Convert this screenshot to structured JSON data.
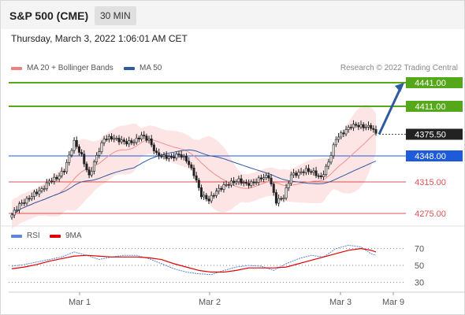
{
  "header": {
    "title": "S&P 500 (CME)",
    "timeframe": "30 MIN",
    "datetime": "Thursday, March 3, 2022 1:06:01 AM CET"
  },
  "main_legend": [
    {
      "label": "MA 20 + Bollinger Bands",
      "color": "#f08080"
    },
    {
      "label": "MA 50",
      "color": "#2f5aa0"
    }
  ],
  "rsi_legend": [
    {
      "label": "RSI",
      "color": "#5b87d6"
    },
    {
      "label": "9MA",
      "color": "#e00000"
    }
  ],
  "copyright": "Research © 2022 Trading Central",
  "colors": {
    "up_candle": "#e8e8e8",
    "down_candle": "#222222",
    "resistance": "#55a81a",
    "pivot": "#1e5bd8",
    "support": "#e05050",
    "forecast_arrow": "#2f5aa0",
    "bollinger": "#fcdcdc"
  },
  "chart_data": [
    {
      "type": "candlestick",
      "title": "S&P 500 (CME)",
      "interval": "30 MIN",
      "ylim": [
        4265,
        4450
      ],
      "x_labels": [
        "Mar 1",
        "Mar 2",
        "Mar 3",
        "Mar 9"
      ],
      "levels": [
        {
          "value": 4441.0,
          "label": "4441.00",
          "kind": "resistance",
          "boxed": true
        },
        {
          "value": 4411.0,
          "label": "4411.00",
          "kind": "resistance",
          "boxed": true
        },
        {
          "value": 4375.5,
          "label": "4375.50",
          "kind": "last",
          "boxed": true
        },
        {
          "value": 4348.0,
          "label": "4348.00",
          "kind": "pivot",
          "boxed": true
        },
        {
          "value": 4315.0,
          "label": "4315.00",
          "kind": "support",
          "boxed": false
        },
        {
          "value": 4275.0,
          "label": "4275.00",
          "kind": "support",
          "boxed": false
        }
      ],
      "anchor_closes": [
        [
          0,
          4273
        ],
        [
          3,
          4286
        ],
        [
          6,
          4292
        ],
        [
          9,
          4300
        ],
        [
          12,
          4305
        ],
        [
          15,
          4316
        ],
        [
          18,
          4320
        ],
        [
          21,
          4330
        ],
        [
          25,
          4366
        ],
        [
          28,
          4348
        ],
        [
          31,
          4322
        ],
        [
          34,
          4348
        ],
        [
          37,
          4370
        ],
        [
          40,
          4371
        ],
        [
          43,
          4368
        ],
        [
          46,
          4365
        ],
        [
          49,
          4366
        ],
        [
          52,
          4374
        ],
        [
          55,
          4368
        ],
        [
          58,
          4350
        ],
        [
          61,
          4347
        ],
        [
          64,
          4346
        ],
        [
          67,
          4350
        ],
        [
          70,
          4343
        ],
        [
          73,
          4325
        ],
        [
          76,
          4298
        ],
        [
          79,
          4292
        ],
        [
          82,
          4303
        ],
        [
          85,
          4310
        ],
        [
          88,
          4314
        ],
        [
          91,
          4317
        ],
        [
          94,
          4312
        ],
        [
          97,
          4314
        ],
        [
          100,
          4320
        ],
        [
          103,
          4322
        ],
        [
          106,
          4290
        ],
        [
          109,
          4296
        ],
        [
          112,
          4324
        ],
        [
          115,
          4326
        ],
        [
          118,
          4330
        ],
        [
          121,
          4327
        ],
        [
          124,
          4320
        ],
        [
          127,
          4340
        ],
        [
          130,
          4370
        ],
        [
          133,
          4378
        ],
        [
          136,
          4386
        ],
        [
          138,
          4387
        ],
        [
          141,
          4385
        ],
        [
          144,
          4385
        ],
        [
          146,
          4376
        ]
      ],
      "forecast": {
        "from": 4375.5,
        "to": 4441.0
      }
    },
    {
      "type": "line",
      "title": "RSI",
      "ylim": [
        20,
        80
      ],
      "yticks": [
        30,
        50,
        70
      ],
      "series": [
        {
          "name": "RSI",
          "color": "#5b87d6",
          "values": [
            [
              0,
              49
            ],
            [
              5,
              51
            ],
            [
              10,
              54
            ],
            [
              15,
              57
            ],
            [
              20,
              60
            ],
            [
              25,
              66
            ],
            [
              30,
              62
            ],
            [
              35,
              57
            ],
            [
              40,
              60
            ],
            [
              45,
              62
            ],
            [
              50,
              62
            ],
            [
              55,
              58
            ],
            [
              60,
              52
            ],
            [
              65,
              46
            ],
            [
              70,
              42
            ],
            [
              75,
              40
            ],
            [
              80,
              39
            ],
            [
              85,
              44
            ],
            [
              90,
              48
            ],
            [
              95,
              50
            ],
            [
              100,
              49
            ],
            [
              105,
              44
            ],
            [
              110,
              52
            ],
            [
              115,
              58
            ],
            [
              120,
              62
            ],
            [
              125,
              60
            ],
            [
              130,
              70
            ],
            [
              135,
              74
            ],
            [
              140,
              72
            ],
            [
              144,
              64
            ],
            [
              146,
              62
            ]
          ]
        },
        {
          "name": "9MA",
          "color": "#e00000",
          "values": [
            [
              0,
              46
            ],
            [
              5,
              48
            ],
            [
              10,
              51
            ],
            [
              15,
              55
            ],
            [
              20,
              58
            ],
            [
              25,
              61
            ],
            [
              30,
              62
            ],
            [
              35,
              61
            ],
            [
              40,
              60
            ],
            [
              45,
              60
            ],
            [
              50,
              60
            ],
            [
              55,
              59
            ],
            [
              60,
              57
            ],
            [
              65,
              52
            ],
            [
              70,
              48
            ],
            [
              75,
              44
            ],
            [
              80,
              42
            ],
            [
              85,
              42
            ],
            [
              90,
              44
            ],
            [
              95,
              47
            ],
            [
              100,
              47
            ],
            [
              105,
              47
            ],
            [
              110,
              48
            ],
            [
              115,
              52
            ],
            [
              120,
              56
            ],
            [
              125,
              60
            ],
            [
              130,
              64
            ],
            [
              135,
              68
            ],
            [
              140,
              70
            ],
            [
              144,
              68
            ],
            [
              146,
              66
            ]
          ]
        }
      ]
    }
  ]
}
